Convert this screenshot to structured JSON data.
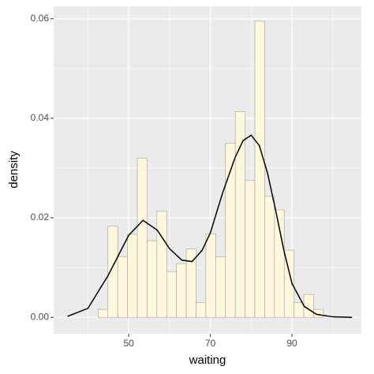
{
  "chart_data": {
    "type": "histogram",
    "x_label": "waiting",
    "y_label": "density",
    "bins": [
      42.5,
      44.9,
      47.3,
      49.7,
      52.1,
      54.5,
      56.9,
      59.3,
      61.7,
      64.1,
      66.5,
      68.9,
      71.3,
      73.7,
      76.1,
      78.5,
      80.9,
      83.3,
      85.7,
      88.1,
      90.5,
      92.9,
      95.3,
      97.7
    ],
    "values": [
      0.0016,
      0.0183,
      0.0122,
      0.0167,
      0.032,
      0.0154,
      0.0213,
      0.0092,
      0.0108,
      0.0137,
      0.003,
      0.0168,
      0.0122,
      0.035,
      0.0413,
      0.0275,
      0.0595,
      0.0243,
      0.0216,
      0.0135,
      0.003,
      0.0046,
      0.0016
    ],
    "color": "#fff8dc",
    "edge_color": "#a0a0a0",
    "density": {
      "color": "#000000",
      "x": [
        35,
        40,
        45,
        50,
        53.5,
        57,
        60,
        63,
        65.5,
        68,
        70,
        73,
        76,
        78,
        80,
        82,
        84,
        86,
        88,
        90,
        93,
        96,
        100,
        104.7
      ],
      "values": [
        0.0002,
        0.0018,
        0.0085,
        0.0165,
        0.0195,
        0.0175,
        0.0138,
        0.0115,
        0.0112,
        0.0135,
        0.017,
        0.025,
        0.032,
        0.0355,
        0.0366,
        0.0345,
        0.029,
        0.0215,
        0.0135,
        0.0068,
        0.0022,
        0.0006,
        0.0001,
        0
      ]
    },
    "xlim": [
      31.6,
      107
    ],
    "ylim": [
      -0.0033,
      0.0625
    ],
    "xticks": [
      50,
      70,
      90
    ],
    "yticks": [
      {
        "value": 0,
        "label": "0.00"
      },
      {
        "value": 0.02,
        "label": "0.02"
      },
      {
        "value": 0.04,
        "label": "0.04"
      },
      {
        "value": 0.06,
        "label": "0.06"
      }
    ],
    "grid": true
  }
}
